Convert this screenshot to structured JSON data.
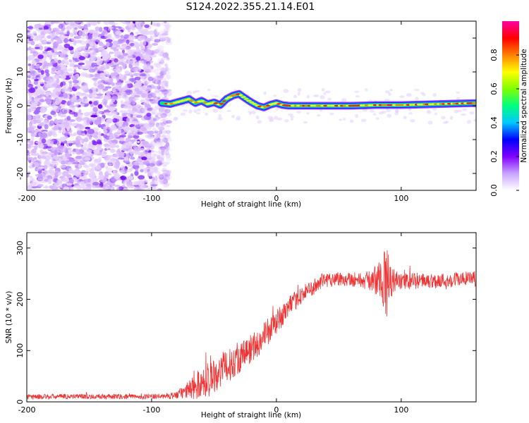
{
  "figure": {
    "title": "S124.2022.355.21.14.E01"
  },
  "chart_data": [
    {
      "type": "heatmap",
      "name": "spectrogram",
      "xlabel": "Height of straight line (km)",
      "ylabel": "Frequency (Hz)",
      "xlim": [
        -200,
        160
      ],
      "ylim": [
        -25,
        25
      ],
      "xticks": [
        -200,
        -100,
        0,
        100
      ],
      "yticks": [
        -20,
        -10,
        0,
        10,
        20
      ],
      "noise_region_x": [
        -200,
        -92
      ],
      "signal_start_x": -92,
      "signal_track": {
        "x": [
          -92,
          -85,
          -80,
          -70,
          -65,
          -60,
          -55,
          -50,
          -45,
          -40,
          -35,
          -30,
          -25,
          -20,
          -15,
          -10,
          -5,
          0,
          5,
          10,
          20,
          40,
          60,
          80,
          100,
          120,
          140,
          160
        ],
        "frequency": [
          0.8,
          0.5,
          1.0,
          2.0,
          0.8,
          1.5,
          0.5,
          1.0,
          0.2,
          2.0,
          3.0,
          3.5,
          2.2,
          1.0,
          0.0,
          -0.5,
          0.3,
          0.8,
          0.2,
          0.0,
          0.0,
          0.0,
          0.0,
          0.2,
          0.2,
          0.4,
          0.6,
          0.8
        ]
      },
      "colorbar": {
        "label": "Normalized spectral amplitude",
        "range": [
          0.0,
          1.0
        ],
        "ticks": [
          0.0,
          0.2,
          0.4,
          0.6,
          0.8
        ],
        "tick_labels": [
          "0.0",
          "0.2",
          "0.4",
          "0.6",
          "0.8"
        ],
        "colors": [
          "#ffffff",
          "#c9a3ff",
          "#8000ff",
          "#0000ff",
          "#00c8ff",
          "#00ff80",
          "#80ff00",
          "#ffff00",
          "#ff8000",
          "#ff0000",
          "#ff00a0"
        ]
      }
    },
    {
      "type": "line",
      "name": "snr",
      "xlabel": "Height of straight line (km)",
      "ylabel": "SNR (10 * v/v)",
      "xlim": [
        -200,
        160
      ],
      "ylim": [
        0,
        330
      ],
      "xticks": [
        -200,
        -100,
        0,
        100
      ],
      "yticks": [
        0,
        100,
        200,
        300
      ],
      "color": "#ee3333",
      "series": [
        {
          "name": "SNR",
          "x": [
            -200,
            -180,
            -160,
            -140,
            -120,
            -100,
            -90,
            -80,
            -75,
            -70,
            -65,
            -60,
            -55,
            -50,
            -45,
            -40,
            -35,
            -30,
            -25,
            -20,
            -15,
            -10,
            -5,
            0,
            5,
            10,
            15,
            20,
            25,
            30,
            35,
            40,
            45,
            50,
            55,
            60,
            65,
            70,
            75,
            80,
            85,
            88,
            90,
            95,
            100,
            110,
            120,
            130,
            140,
            150,
            160
          ],
          "values": [
            10,
            10,
            11,
            10,
            10,
            10,
            11,
            13,
            18,
            24,
            30,
            37,
            45,
            53,
            60,
            68,
            76,
            85,
            95,
            105,
            115,
            128,
            140,
            155,
            170,
            185,
            197,
            208,
            217,
            225,
            232,
            238,
            240,
            240,
            240,
            240,
            238,
            236,
            237,
            238,
            238,
            230,
            240,
            236,
            234,
            236,
            236,
            236,
            238,
            240,
            240
          ],
          "amplitude": [
            5,
            5,
            5,
            5,
            5,
            5,
            5,
            8,
            12,
            18,
            26,
            32,
            35,
            35,
            35,
            33,
            30,
            30,
            30,
            30,
            28,
            28,
            26,
            24,
            22,
            20,
            18,
            18,
            16,
            16,
            16,
            16,
            15,
            15,
            15,
            15,
            15,
            16,
            20,
            30,
            45,
            80,
            45,
            20,
            16,
            16,
            15,
            15,
            15,
            15,
            15
          ]
        }
      ]
    }
  ]
}
